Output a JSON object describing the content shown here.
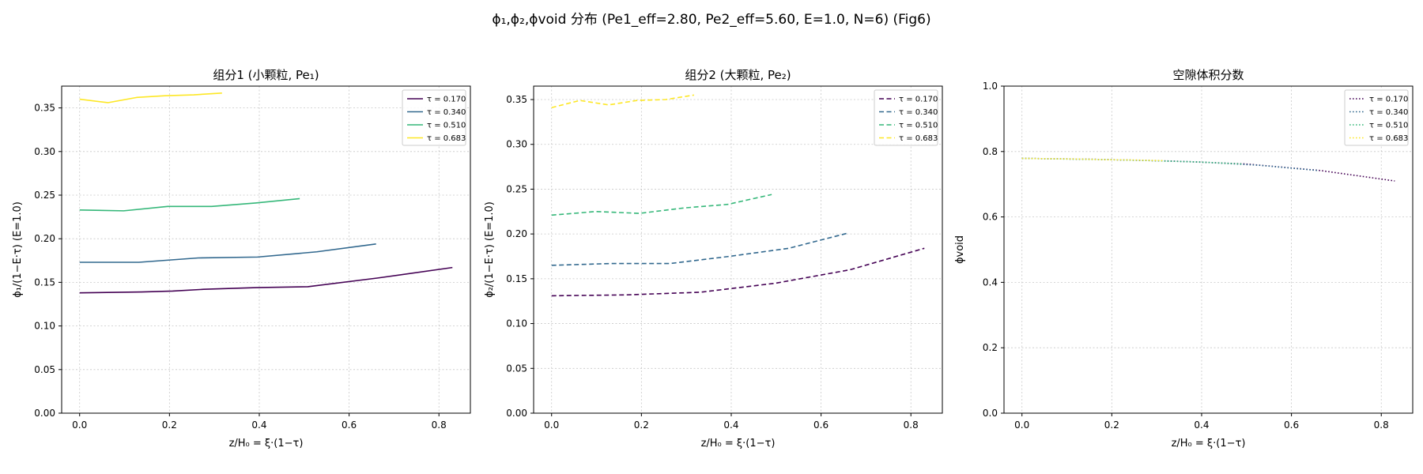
{
  "figure": {
    "suptitle": "ϕ₁,ϕ₂,ϕvoid 分布 (Pe1_eff=2.80, Pe2_eff=5.60, E=1.0, N=6) (Fig6)"
  },
  "colors": {
    "tau_0.170": "#440154",
    "tau_0.340": "#31688e",
    "tau_0.510": "#35b779",
    "tau_0.683": "#fde725",
    "grid": "#b0b0b0"
  },
  "chart_data": [
    {
      "type": "line",
      "title": "组分1 (小颗粒, Pe₁)",
      "xlabel": "z/H₀ = ξ·(1−τ)",
      "ylabel": "ϕ₁/(1−E·τ) (E=1.0)",
      "xlim": [
        -0.04,
        0.87
      ],
      "ylim": [
        0.0,
        0.375
      ],
      "xticks": [
        0.0,
        0.2,
        0.4,
        0.6,
        0.8
      ],
      "xtick_labels": [
        "0.0",
        "0.2",
        "0.4",
        "0.6",
        "0.8"
      ],
      "yticks": [
        0.0,
        0.05,
        0.1,
        0.15,
        0.2,
        0.25,
        0.3,
        0.35
      ],
      "ytick_labels": [
        "0.00",
        "0.05",
        "0.10",
        "0.15",
        "0.20",
        "0.25",
        "0.30",
        "0.35"
      ],
      "grid": true,
      "legend_position": "top-right",
      "line_style": "solid",
      "series": [
        {
          "name": "τ = 0.170",
          "color": "#440154",
          "x": [
            0.0,
            0.138,
            0.207,
            0.276,
            0.393,
            0.508,
            0.664,
            0.83
          ],
          "y": [
            0.138,
            0.139,
            0.14,
            0.142,
            0.144,
            0.145,
            0.155,
            0.167
          ]
        },
        {
          "name": "τ = 0.340",
          "color": "#31688e",
          "x": [
            0.0,
            0.132,
            0.264,
            0.396,
            0.528,
            0.66
          ],
          "y": [
            0.173,
            0.173,
            0.178,
            0.179,
            0.185,
            0.194
          ]
        },
        {
          "name": "τ = 0.510",
          "color": "#35b779",
          "x": [
            0.0,
            0.098,
            0.196,
            0.294,
            0.392,
            0.49
          ],
          "y": [
            0.233,
            0.232,
            0.237,
            0.237,
            0.241,
            0.246
          ]
        },
        {
          "name": "τ = 0.683",
          "color": "#fde725",
          "x": [
            0.0,
            0.063,
            0.127,
            0.19,
            0.254,
            0.317
          ],
          "y": [
            0.36,
            0.356,
            0.362,
            0.364,
            0.365,
            0.367
          ]
        }
      ]
    },
    {
      "type": "line",
      "title": "组分2 (大颗粒, Pe₂)",
      "xlabel": "z/H₀ = ξ·(1−τ)",
      "ylabel": "ϕ₂/(1−E·τ) (E=1.0)",
      "xlim": [
        -0.04,
        0.87
      ],
      "ylim": [
        0.0,
        0.365
      ],
      "xticks": [
        0.0,
        0.2,
        0.4,
        0.6,
        0.8
      ],
      "xtick_labels": [
        "0.0",
        "0.2",
        "0.4",
        "0.6",
        "0.8"
      ],
      "yticks": [
        0.0,
        0.05,
        0.1,
        0.15,
        0.2,
        0.25,
        0.3,
        0.35
      ],
      "ytick_labels": [
        "0.00",
        "0.05",
        "0.10",
        "0.15",
        "0.20",
        "0.25",
        "0.30",
        "0.35"
      ],
      "grid": true,
      "legend_position": "top-right",
      "line_style": "dashed",
      "series": [
        {
          "name": "τ = 0.170",
          "color": "#440154",
          "x": [
            0.0,
            0.166,
            0.332,
            0.498,
            0.664,
            0.83
          ],
          "y": [
            0.131,
            0.132,
            0.135,
            0.145,
            0.16,
            0.184
          ]
        },
        {
          "name": "τ = 0.340",
          "color": "#31688e",
          "x": [
            0.0,
            0.132,
            0.264,
            0.396,
            0.528,
            0.66
          ],
          "y": [
            0.165,
            0.167,
            0.167,
            0.175,
            0.184,
            0.201
          ]
        },
        {
          "name": "τ = 0.510",
          "color": "#35b779",
          "x": [
            0.0,
            0.098,
            0.196,
            0.294,
            0.392,
            0.49
          ],
          "y": [
            0.221,
            0.225,
            0.223,
            0.229,
            0.233,
            0.244
          ]
        },
        {
          "name": "τ = 0.683",
          "color": "#fde725",
          "x": [
            0.0,
            0.063,
            0.127,
            0.19,
            0.254,
            0.317
          ],
          "y": [
            0.341,
            0.349,
            0.344,
            0.349,
            0.35,
            0.355
          ]
        }
      ]
    },
    {
      "type": "line",
      "title": "空隙体积分数",
      "xlabel": "z/H₀ = ξ·(1−τ)",
      "ylabel": "ϕvoid",
      "xlim": [
        -0.04,
        0.87
      ],
      "ylim": [
        0.0,
        1.0
      ],
      "xticks": [
        0.0,
        0.2,
        0.4,
        0.6,
        0.8
      ],
      "xtick_labels": [
        "0.0",
        "0.2",
        "0.4",
        "0.6",
        "0.8"
      ],
      "yticks": [
        0.0,
        0.2,
        0.4,
        0.6,
        0.8,
        1.0
      ],
      "ytick_labels": [
        "0.0",
        "0.2",
        "0.4",
        "0.6",
        "0.8",
        "1.0"
      ],
      "grid": true,
      "legend_position": "top-right",
      "line_style": "dotted",
      "series": [
        {
          "name": "τ = 0.170",
          "color": "#440154",
          "x": [
            0.0,
            0.166,
            0.332,
            0.498,
            0.664,
            0.83
          ],
          "y": [
            0.779,
            0.776,
            0.771,
            0.762,
            0.742,
            0.71
          ]
        },
        {
          "name": "τ = 0.340",
          "color": "#31688e",
          "x": [
            0.0,
            0.132,
            0.264,
            0.396,
            0.528,
            0.66
          ],
          "y": [
            0.779,
            0.777,
            0.773,
            0.768,
            0.758,
            0.742
          ]
        },
        {
          "name": "τ = 0.510",
          "color": "#35b779",
          "x": [
            0.0,
            0.098,
            0.196,
            0.294,
            0.392,
            0.49
          ],
          "y": [
            0.779,
            0.777,
            0.775,
            0.772,
            0.768,
            0.762
          ]
        },
        {
          "name": "τ = 0.683",
          "color": "#fde725",
          "x": [
            0.0,
            0.063,
            0.127,
            0.19,
            0.254,
            0.317
          ],
          "y": [
            0.779,
            0.778,
            0.777,
            0.775,
            0.774,
            0.772
          ]
        }
      ]
    }
  ]
}
